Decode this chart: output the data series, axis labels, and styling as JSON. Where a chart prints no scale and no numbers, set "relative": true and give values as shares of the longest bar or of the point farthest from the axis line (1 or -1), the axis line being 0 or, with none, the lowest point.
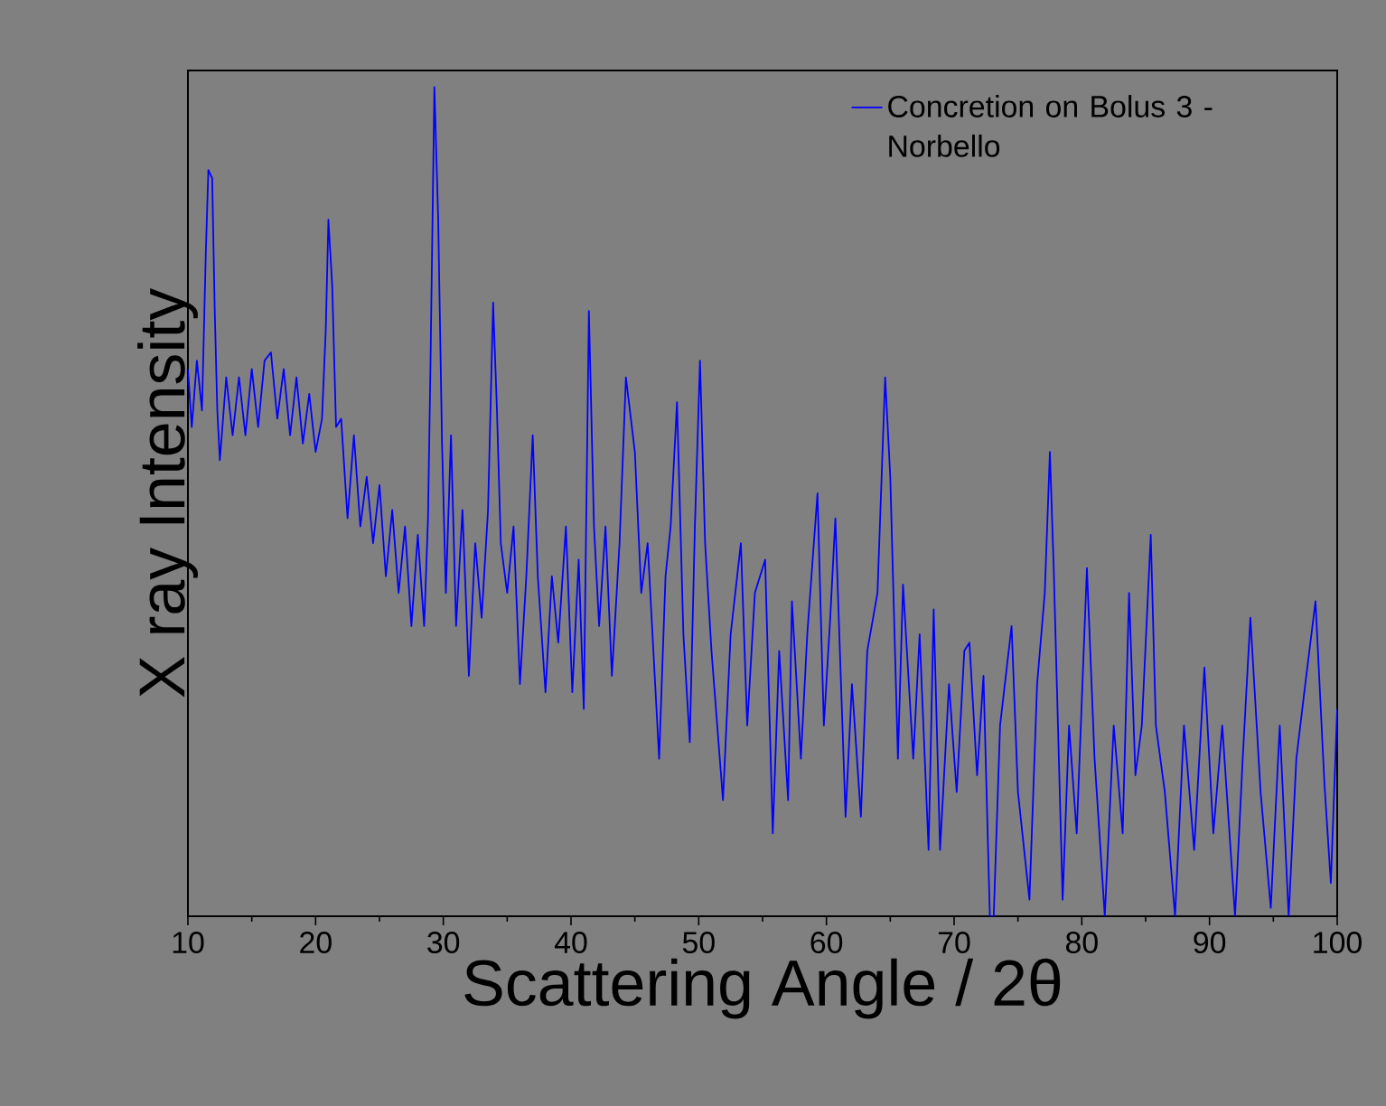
{
  "chart_data": {
    "type": "line",
    "xlabel": "Scattering Angle / 2θ",
    "ylabel": "X ray Intensity",
    "relative": true,
    "legend": "top right",
    "xlim": [
      10,
      100
    ],
    "xticks": [
      10,
      20,
      30,
      40,
      50,
      60,
      70,
      80,
      90,
      100
    ],
    "series": [
      {
        "name": "Concretion on Bolus 3 - Norbello",
        "color": "#0000ff",
        "x": [
          10.0,
          10.3,
          10.7,
          11.1,
          11.4,
          11.6,
          11.9,
          12.1,
          12.3,
          12.5,
          13.0,
          13.5,
          14.0,
          14.5,
          15.0,
          15.5,
          16.0,
          16.5,
          17.0,
          17.5,
          18.0,
          18.5,
          19.0,
          19.5,
          20.0,
          20.5,
          20.8,
          21.0,
          21.3,
          21.6,
          22.0,
          22.5,
          23.0,
          23.5,
          24.0,
          24.5,
          25.0,
          25.5,
          26.0,
          26.5,
          27.0,
          27.5,
          28.0,
          28.5,
          28.8,
          29.0,
          29.3,
          29.6,
          29.9,
          30.2,
          30.6,
          31.0,
          31.5,
          32.0,
          32.5,
          33.0,
          33.5,
          33.9,
          34.2,
          34.5,
          35.0,
          35.5,
          36.0,
          36.5,
          37.0,
          37.4,
          38.0,
          38.5,
          39.0,
          39.6,
          40.1,
          40.6,
          41.0,
          41.4,
          41.8,
          42.2,
          42.7,
          43.2,
          43.8,
          44.3,
          45.0,
          45.5,
          46.0,
          46.9,
          47.4,
          47.8,
          48.3,
          48.8,
          49.3,
          49.7,
          50.1,
          50.5,
          51.0,
          51.9,
          52.5,
          53.3,
          53.8,
          54.4,
          55.2,
          55.8,
          56.3,
          57.0,
          57.3,
          58.0,
          58.5,
          59.3,
          59.8,
          60.3,
          60.7,
          61.5,
          62.0,
          62.7,
          63.2,
          64.0,
          64.6,
          65.0,
          65.6,
          66.0,
          66.8,
          67.3,
          68.0,
          68.4,
          68.9,
          69.6,
          70.2,
          70.8,
          71.2,
          71.8,
          72.3,
          72.8,
          73.1,
          73.6,
          74.5,
          75.0,
          75.9,
          76.5,
          77.1,
          77.5,
          77.8,
          78.5,
          79.0,
          79.6,
          80.4,
          81.0,
          81.8,
          82.5,
          83.2,
          83.7,
          84.2,
          84.7,
          85.4,
          85.8,
          86.5,
          87.3,
          88.0,
          88.8,
          89.6,
          90.3,
          91.0,
          92.0,
          92.6,
          93.2,
          94.0,
          94.8,
          95.5,
          96.2,
          96.8,
          97.5,
          98.3,
          99.0,
          99.5,
          100.0
        ],
        "values": [
          0.66,
          0.59,
          0.67,
          0.61,
          0.8,
          0.9,
          0.89,
          0.73,
          0.61,
          0.55,
          0.65,
          0.58,
          0.65,
          0.58,
          0.66,
          0.59,
          0.67,
          0.68,
          0.6,
          0.66,
          0.58,
          0.65,
          0.57,
          0.63,
          0.56,
          0.6,
          0.71,
          0.84,
          0.76,
          0.59,
          0.6,
          0.48,
          0.58,
          0.47,
          0.53,
          0.45,
          0.52,
          0.41,
          0.49,
          0.39,
          0.47,
          0.35,
          0.46,
          0.35,
          0.48,
          0.67,
          1,
          0.84,
          0.57,
          0.39,
          0.58,
          0.35,
          0.49,
          0.29,
          0.45,
          0.36,
          0.49,
          0.74,
          0.61,
          0.45,
          0.39,
          0.47,
          0.28,
          0.41,
          0.58,
          0.41,
          0.27,
          0.41,
          0.33,
          0.47,
          0.27,
          0.43,
          0.25,
          0.73,
          0.47,
          0.35,
          0.47,
          0.29,
          0.45,
          0.65,
          0.56,
          0.39,
          0.45,
          0.19,
          0.41,
          0.47,
          0.62,
          0.34,
          0.21,
          0.47,
          0.67,
          0.45,
          0.32,
          0.14,
          0.34,
          0.45,
          0.23,
          0.39,
          0.43,
          0.1,
          0.32,
          0.14,
          0.38,
          0.19,
          0.34,
          0.51,
          0.23,
          0.36,
          0.48,
          0.12,
          0.28,
          0.12,
          0.32,
          0.39,
          0.65,
          0.53,
          0.19,
          0.4,
          0.19,
          0.34,
          0.08,
          0.37,
          0.08,
          0.28,
          0.15,
          0.32,
          0.33,
          0.17,
          0.29,
          0,
          0,
          0.23,
          0.35,
          0.15,
          0.02,
          0.28,
          0.39,
          0.56,
          0.42,
          0.02,
          0.23,
          0.1,
          0.42,
          0.19,
          0,
          0.23,
          0.1,
          0.39,
          0.17,
          0.23,
          0.46,
          0.23,
          0.15,
          0,
          0.23,
          0.08,
          0.3,
          0.1,
          0.23,
          0,
          0.19,
          0.36,
          0.15,
          0.01,
          0.23,
          0,
          0.19,
          0.28,
          0.38,
          0.16,
          0.04,
          0.25
        ]
      }
    ]
  }
}
